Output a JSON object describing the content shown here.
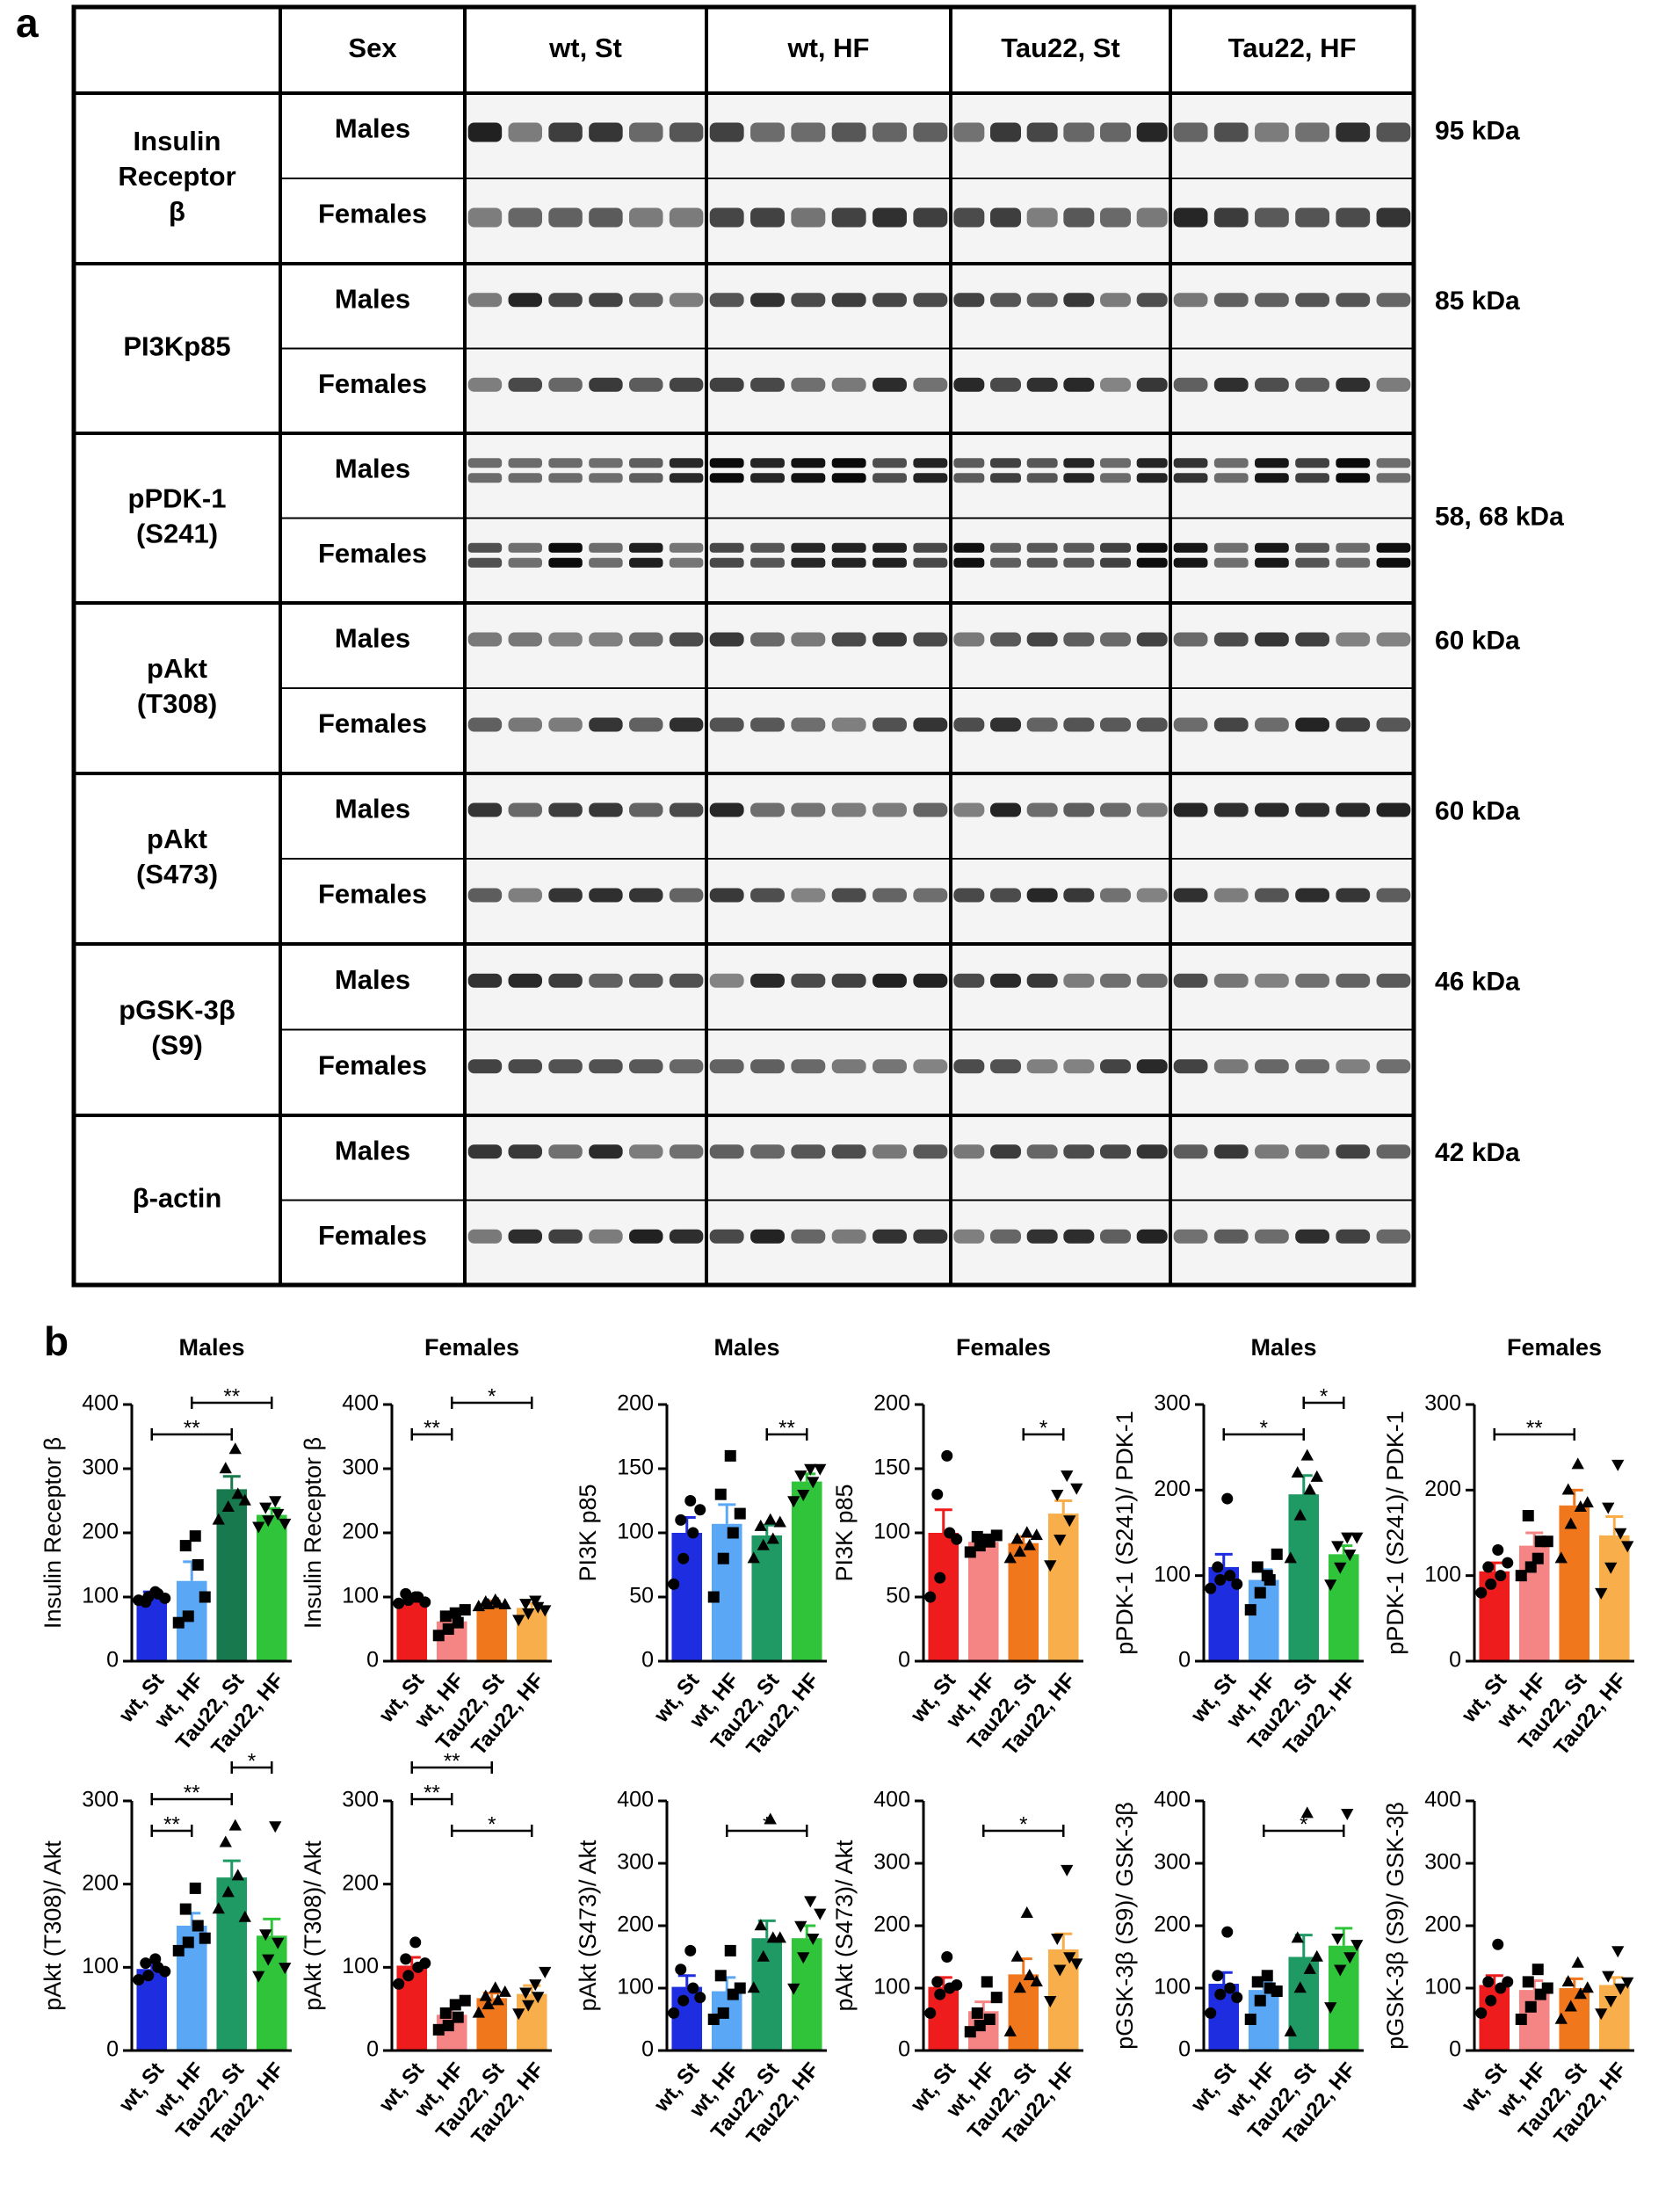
{
  "panel_a": {
    "label": "a",
    "header": [
      "Sex",
      "wt, St",
      "wt, HF",
      "Tau22, St",
      "Tau22, HF"
    ],
    "rows": [
      {
        "protein": [
          "Insulin",
          "Receptor",
          "β"
        ],
        "sexes": [
          "Males",
          "Females"
        ],
        "kda": "95 kDa"
      },
      {
        "protein": [
          "PI3Kp85"
        ],
        "sexes": [
          "Males",
          "Females"
        ],
        "kda": "85 kDa"
      },
      {
        "protein": [
          "pPDK-1",
          "(S241)"
        ],
        "sexes": [
          "Males",
          "Females"
        ],
        "kda": "58, 68 kDa"
      },
      {
        "protein": [
          "pAkt",
          "(T308)"
        ],
        "sexes": [
          "Males",
          "Females"
        ],
        "kda": "60 kDa"
      },
      {
        "protein": [
          "pAkt",
          "(S473)"
        ],
        "sexes": [
          "Males",
          "Females"
        ],
        "kda": "60 kDa"
      },
      {
        "protein": [
          "pGSK-3β",
          "(S9)"
        ],
        "sexes": [
          "Males",
          "Females"
        ],
        "kda": "46 kDa"
      },
      {
        "protein": [
          "β-actin"
        ],
        "sexes": [
          "Males",
          "Females"
        ],
        "kda": "42 kDa"
      }
    ]
  },
  "panel_b": {
    "label": "b"
  },
  "chart_data": [
    {
      "type": "bar",
      "title": "Males",
      "ylabel": "Insulin Receptor β",
      "categories": [
        "wt, St",
        "wt, HF",
        "Tau22, St",
        "Tau22, HF"
      ],
      "colors": [
        "#1f2de0",
        "#5aa8f5",
        "#17794d",
        "#2fc43a"
      ],
      "values": [
        100,
        125,
        268,
        228
      ],
      "errors": [
        8,
        30,
        20,
        10
      ],
      "points": [
        [
          95,
          100,
          105,
          92,
          108,
          98
        ],
        [
          60,
          70,
          150,
          180,
          195,
          100
        ],
        [
          220,
          240,
          260,
          300,
          330,
          250
        ],
        [
          210,
          220,
          230,
          240,
          250,
          215
        ]
      ],
      "ylim": [
        0,
        400
      ],
      "yticks": [
        0,
        100,
        200,
        300,
        400
      ],
      "significance": [
        {
          "from": 0,
          "to": 2,
          "label": "**"
        },
        {
          "from": 1,
          "to": 3,
          "label": "**"
        }
      ]
    },
    {
      "type": "bar",
      "title": "Females",
      "ylabel": "Insulin Receptor β",
      "categories": [
        "wt, St",
        "wt, HF",
        "Tau22, St",
        "Tau22, HF"
      ],
      "colors": [
        "#ee1c1c",
        "#f58585",
        "#f0771c",
        "#f8ae4a"
      ],
      "values": [
        97,
        62,
        90,
        83
      ],
      "errors": [
        5,
        8,
        4,
        7
      ],
      "points": [
        [
          90,
          95,
          100,
          105,
          100,
          92
        ],
        [
          40,
          50,
          60,
          70,
          75,
          80
        ],
        [
          85,
          88,
          90,
          92,
          95,
          88
        ],
        [
          65,
          75,
          85,
          90,
          95,
          80
        ]
      ],
      "ylim": [
        0,
        400
      ],
      "yticks": [
        0,
        100,
        200,
        300,
        400
      ],
      "significance": [
        {
          "from": 0,
          "to": 1,
          "label": "**"
        },
        {
          "from": 1,
          "to": 3,
          "label": "*"
        }
      ]
    },
    {
      "type": "bar",
      "title": "Males",
      "ylabel": "PI3K p85",
      "categories": [
        "wt, St",
        "wt, HF",
        "Tau22, St",
        "Tau22, HF"
      ],
      "colors": [
        "#1f2de0",
        "#5aa8f5",
        "#1f9a64",
        "#2fc43a"
      ],
      "values": [
        100,
        107,
        98,
        140
      ],
      "errors": [
        12,
        15,
        8,
        6
      ],
      "points": [
        [
          60,
          80,
          100,
          110,
          125,
          118
        ],
        [
          50,
          80,
          100,
          130,
          160,
          115
        ],
        [
          80,
          90,
          95,
          105,
          110,
          108
        ],
        [
          125,
          130,
          140,
          145,
          150,
          150
        ]
      ],
      "ylim": [
        0,
        200
      ],
      "yticks": [
        0,
        50,
        100,
        150,
        200
      ],
      "significance": [
        {
          "from": 2,
          "to": 3,
          "label": "**"
        }
      ]
    },
    {
      "type": "bar",
      "title": "Females",
      "ylabel": "PI3K p85",
      "categories": [
        "wt, St",
        "wt, HF",
        "Tau22, St",
        "Tau22, HF"
      ],
      "colors": [
        "#ee1c1c",
        "#f58585",
        "#f0771c",
        "#f8ae4a"
      ],
      "values": [
        100,
        93,
        92,
        115
      ],
      "errors": [
        18,
        4,
        5,
        10
      ],
      "points": [
        [
          50,
          65,
          100,
          130,
          160,
          95
        ],
        [
          85,
          90,
          93,
          97,
          95,
          98
        ],
        [
          80,
          85,
          90,
          95,
          100,
          98
        ],
        [
          75,
          95,
          110,
          130,
          145,
          135
        ]
      ],
      "ylim": [
        0,
        200
      ],
      "yticks": [
        0,
        50,
        100,
        150,
        200
      ],
      "significance": [
        {
          "from": 2,
          "to": 3,
          "label": "*"
        }
      ]
    },
    {
      "type": "bar",
      "title": "Males",
      "ylabel": "pPDK-1 (S241)/ PDK-1",
      "categories": [
        "wt, St",
        "wt, HF",
        "Tau22, St",
        "Tau22, HF"
      ],
      "colors": [
        "#1f2de0",
        "#5aa8f5",
        "#1f9a64",
        "#2fc43a"
      ],
      "values": [
        110,
        95,
        195,
        125
      ],
      "errors": [
        15,
        12,
        22,
        10
      ],
      "points": [
        [
          85,
          95,
          100,
          110,
          190,
          90
        ],
        [
          60,
          80,
          95,
          110,
          100,
          125
        ],
        [
          120,
          170,
          200,
          220,
          240,
          215
        ],
        [
          90,
          110,
          125,
          135,
          145,
          145
        ]
      ],
      "ylim": [
        0,
        300
      ],
      "yticks": [
        0,
        100,
        200,
        300
      ],
      "significance": [
        {
          "from": 0,
          "to": 2,
          "label": "*"
        },
        {
          "from": 2,
          "to": 3,
          "label": "*"
        }
      ]
    },
    {
      "type": "bar",
      "title": "Females",
      "ylabel": "pPDK-1 (S241)/ PDK-1",
      "categories": [
        "wt, St",
        "wt, HF",
        "Tau22, St",
        "Tau22, HF"
      ],
      "colors": [
        "#ee1c1c",
        "#f58585",
        "#f0771c",
        "#f8ae4a"
      ],
      "values": [
        105,
        135,
        182,
        147
      ],
      "errors": [
        10,
        15,
        18,
        22
      ],
      "points": [
        [
          80,
          90,
          100,
          110,
          130,
          115
        ],
        [
          100,
          110,
          140,
          170,
          120,
          140
        ],
        [
          120,
          160,
          180,
          200,
          230,
          185
        ],
        [
          80,
          110,
          150,
          180,
          230,
          135
        ]
      ],
      "ylim": [
        0,
        300
      ],
      "yticks": [
        0,
        100,
        200,
        300
      ],
      "significance": [
        {
          "from": 0,
          "to": 2,
          "label": "**"
        }
      ]
    },
    {
      "type": "bar",
      "ylabel": "pAkt (T308)/ Akt",
      "categories": [
        "wt, St",
        "wt, HF",
        "Tau22, St",
        "Tau22, HF"
      ],
      "colors": [
        "#1f2de0",
        "#5aa8f5",
        "#1f9a64",
        "#2fc43a"
      ],
      "values": [
        98,
        150,
        208,
        138
      ],
      "errors": [
        6,
        15,
        20,
        20
      ],
      "points": [
        [
          85,
          90,
          100,
          105,
          110,
          95
        ],
        [
          120,
          130,
          150,
          170,
          195,
          135
        ],
        [
          170,
          190,
          210,
          250,
          270,
          160
        ],
        [
          90,
          110,
          130,
          140,
          270,
          100
        ]
      ],
      "ylim": [
        0,
        300
      ],
      "yticks": [
        0,
        100,
        200,
        300
      ],
      "significance": [
        {
          "from": 0,
          "to": 1,
          "label": "**"
        },
        {
          "from": 0,
          "to": 2,
          "label": "**"
        },
        {
          "from": 2,
          "to": 3,
          "label": "*"
        }
      ]
    },
    {
      "type": "bar",
      "ylabel": "pAkt (T308)/ Akt",
      "categories": [
        "wt, St",
        "wt, HF",
        "Tau22, St",
        "Tau22, HF"
      ],
      "colors": [
        "#ee1c1c",
        "#f58585",
        "#f0771c",
        "#f8ae4a"
      ],
      "values": [
        102,
        43,
        63,
        68
      ],
      "errors": [
        10,
        7,
        6,
        10
      ],
      "points": [
        [
          80,
          90,
          100,
          110,
          130,
          105
        ],
        [
          25,
          30,
          40,
          45,
          55,
          60
        ],
        [
          45,
          55,
          60,
          65,
          75,
          70
        ],
        [
          45,
          55,
          65,
          70,
          80,
          95
        ]
      ],
      "ylim": [
        0,
        300
      ],
      "yticks": [
        0,
        100,
        200,
        300
      ],
      "significance": [
        {
          "from": 1,
          "to": 3,
          "label": "*"
        },
        {
          "from": 0,
          "to": 1,
          "label": "**"
        },
        {
          "from": 0,
          "to": 2,
          "label": "**"
        }
      ]
    },
    {
      "type": "bar",
      "ylabel": "pAkt (S473)/ Akt",
      "categories": [
        "wt, St",
        "wt, HF",
        "Tau22, St",
        "Tau22, HF"
      ],
      "colors": [
        "#1f2de0",
        "#5aa8f5",
        "#1f9a64",
        "#2fc43a"
      ],
      "values": [
        102,
        95,
        180,
        180
      ],
      "errors": [
        18,
        22,
        28,
        20
      ],
      "points": [
        [
          60,
          80,
          100,
          130,
          160,
          85
        ],
        [
          50,
          60,
          90,
          120,
          160,
          100
        ],
        [
          100,
          150,
          180,
          200,
          370,
          180
        ],
        [
          100,
          150,
          180,
          200,
          240,
          220
        ]
      ],
      "ylim": [
        0,
        400
      ],
      "yticks": [
        0,
        100,
        200,
        300,
        400
      ],
      "significance": [
        {
          "from": 1,
          "to": 3,
          "label": "*"
        }
      ]
    },
    {
      "type": "bar",
      "ylabel": "pAkt (S473)/ Akt",
      "categories": [
        "wt, St",
        "wt, HF",
        "Tau22, St",
        "Tau22, HF"
      ],
      "colors": [
        "#ee1c1c",
        "#f58585",
        "#f0771c",
        "#f8ae4a"
      ],
      "values": [
        102,
        63,
        122,
        162
      ],
      "errors": [
        15,
        15,
        25,
        25
      ],
      "points": [
        [
          60,
          90,
          100,
          110,
          150,
          105
        ],
        [
          30,
          40,
          50,
          60,
          110,
          85
        ],
        [
          30,
          100,
          120,
          150,
          220,
          110
        ],
        [
          80,
          130,
          150,
          180,
          290,
          140
        ]
      ],
      "ylim": [
        0,
        400
      ],
      "yticks": [
        0,
        100,
        200,
        300,
        400
      ],
      "significance": [
        {
          "from": 1,
          "to": 3,
          "label": "*"
        }
      ]
    },
    {
      "type": "bar",
      "ylabel": "pGSK-3β (S9)/ GSK-3β",
      "categories": [
        "wt, St",
        "wt, HF",
        "Tau22, St",
        "Tau22, HF"
      ],
      "colors": [
        "#1f2de0",
        "#5aa8f5",
        "#1f9a64",
        "#2fc43a"
      ],
      "values": [
        107,
        97,
        150,
        168
      ],
      "errors": [
        18,
        12,
        35,
        28
      ],
      "points": [
        [
          60,
          90,
          100,
          120,
          190,
          85
        ],
        [
          50,
          80,
          100,
          110,
          120,
          95
        ],
        [
          30,
          100,
          130,
          180,
          380,
          150
        ],
        [
          70,
          130,
          150,
          180,
          380,
          170
        ]
      ],
      "ylim": [
        0,
        400
      ],
      "yticks": [
        0,
        100,
        200,
        300,
        400
      ],
      "significance": [
        {
          "from": 1,
          "to": 3,
          "label": "*"
        }
      ]
    },
    {
      "type": "bar",
      "ylabel": "pGSK-3β (S9)/ GSK-3β",
      "categories": [
        "wt, St",
        "wt, HF",
        "Tau22, St",
        "Tau22, HF"
      ],
      "colors": [
        "#ee1c1c",
        "#f58585",
        "#f0771c",
        "#f8ae4a"
      ],
      "values": [
        105,
        97,
        100,
        105
      ],
      "errors": [
        15,
        15,
        15,
        12
      ],
      "points": [
        [
          60,
          80,
          100,
          110,
          170,
          110
        ],
        [
          50,
          70,
          90,
          110,
          130,
          100
        ],
        [
          50,
          70,
          90,
          110,
          140,
          100
        ],
        [
          60,
          80,
          100,
          120,
          160,
          110
        ]
      ],
      "ylim": [
        0,
        400
      ],
      "yticks": [
        0,
        100,
        200,
        300,
        400
      ],
      "significance": []
    }
  ]
}
